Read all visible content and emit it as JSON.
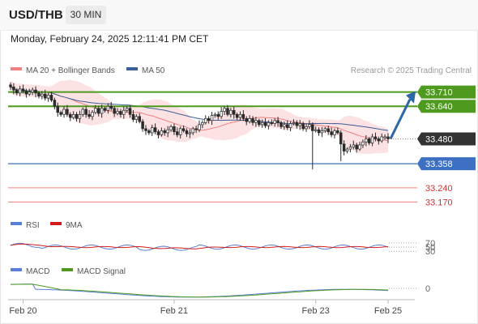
{
  "header": {
    "symbol": "USD/THB",
    "timeframe": "30 MIN",
    "datetime": "Monday, February 24, 2025 12:11:41 PM CET"
  },
  "colors": {
    "candle": "#2a2a2a",
    "bollinger_fill": "#fbd8d8",
    "bollinger_mid": "#f08080",
    "ma50": "#3b5f97",
    "resistance": "#4d9a1f",
    "pivot": "#3d6fc2",
    "support": "#f08080",
    "last_price_bg": "#333333",
    "arrow": "#2f66a8",
    "rsi": "#5b7fd6",
    "rsi_ma": "#d11c1c",
    "macd": "#5b7fd6",
    "macd_signal": "#4d9a1f"
  },
  "chart_data": [
    {
      "type": "candlestick",
      "legend": [
        {
          "label": "MA 20 + Bollinger Bands",
          "color": "#f08080"
        },
        {
          "label": "MA 50",
          "color": "#3b5f97"
        }
      ],
      "legend_position": "top-left",
      "credit": "Research © 2025 Trading Central",
      "ylim": [
        33.12,
        33.78
      ],
      "x_ticks": [
        {
          "label": "Feb 20",
          "index": 4
        },
        {
          "label": "Feb 21",
          "index": 52
        },
        {
          "label": "Feb 23",
          "index": 97
        },
        {
          "label": "Feb 25",
          "index": 120
        }
      ],
      "levels": [
        {
          "value": 33.71,
          "label": "33.710",
          "kind": "resistance"
        },
        {
          "value": 33.64,
          "label": "33.640",
          "kind": "resistance"
        },
        {
          "value": 33.48,
          "label": "33.480",
          "kind": "last"
        },
        {
          "value": 33.358,
          "label": "33.358",
          "kind": "pivot"
        },
        {
          "value": 33.24,
          "label": "33.240",
          "kind": "support"
        },
        {
          "value": 33.17,
          "label": "33.170",
          "kind": "support"
        }
      ],
      "arrow": {
        "from_value": 33.48,
        "to_value": 33.71
      },
      "close": [
        33.735,
        33.72,
        33.705,
        33.725,
        33.715,
        33.7,
        33.71,
        33.72,
        33.705,
        33.69,
        33.7,
        33.68,
        33.695,
        33.67,
        33.64,
        33.61,
        33.6,
        33.625,
        33.6,
        33.585,
        33.6,
        33.58,
        33.6,
        33.625,
        33.6,
        33.59,
        33.61,
        33.63,
        33.605,
        33.63,
        33.62,
        33.64,
        33.63,
        33.605,
        33.615,
        33.6,
        33.62,
        33.63,
        33.6,
        33.575,
        33.59,
        33.565,
        33.53,
        33.52,
        33.51,
        33.535,
        33.515,
        33.5,
        33.52,
        33.51,
        33.525,
        33.54,
        33.515,
        33.5,
        33.53,
        33.52,
        33.505,
        33.51,
        33.53,
        33.525,
        33.55,
        33.56,
        33.58,
        33.57,
        33.595,
        33.6,
        33.59,
        33.615,
        33.63,
        33.6,
        33.62,
        33.6,
        33.585,
        33.6,
        33.58,
        33.565,
        33.58,
        33.56,
        33.57,
        33.55,
        33.56,
        33.545,
        33.56,
        33.555,
        33.57,
        33.56,
        33.54,
        33.55,
        33.535,
        33.555,
        33.56,
        33.545,
        33.555,
        33.53,
        33.54,
        33.55,
        33.52,
        33.525,
        33.51,
        33.52,
        33.53,
        33.515,
        33.5,
        33.52,
        33.51,
        33.455,
        33.42,
        33.43,
        33.44,
        33.45,
        33.43,
        33.45,
        33.465,
        33.48,
        33.46,
        33.49,
        33.48,
        33.47,
        33.49,
        33.49,
        33.48
      ]
    },
    {
      "type": "line",
      "name": "RSI panel",
      "legend": [
        {
          "label": "RSI",
          "color": "#5b7fd6"
        },
        {
          "label": "9MA",
          "color": "#d11c1c"
        }
      ],
      "ylim": [
        0,
        100
      ],
      "y_ticks": [
        70,
        50,
        30
      ]
    },
    {
      "type": "line",
      "name": "MACD panel",
      "legend": [
        {
          "label": "MACD",
          "color": "#5b7fd6"
        },
        {
          "label": "MACD Signal",
          "color": "#4d9a1f"
        }
      ],
      "y_ticks": [
        0
      ]
    }
  ]
}
